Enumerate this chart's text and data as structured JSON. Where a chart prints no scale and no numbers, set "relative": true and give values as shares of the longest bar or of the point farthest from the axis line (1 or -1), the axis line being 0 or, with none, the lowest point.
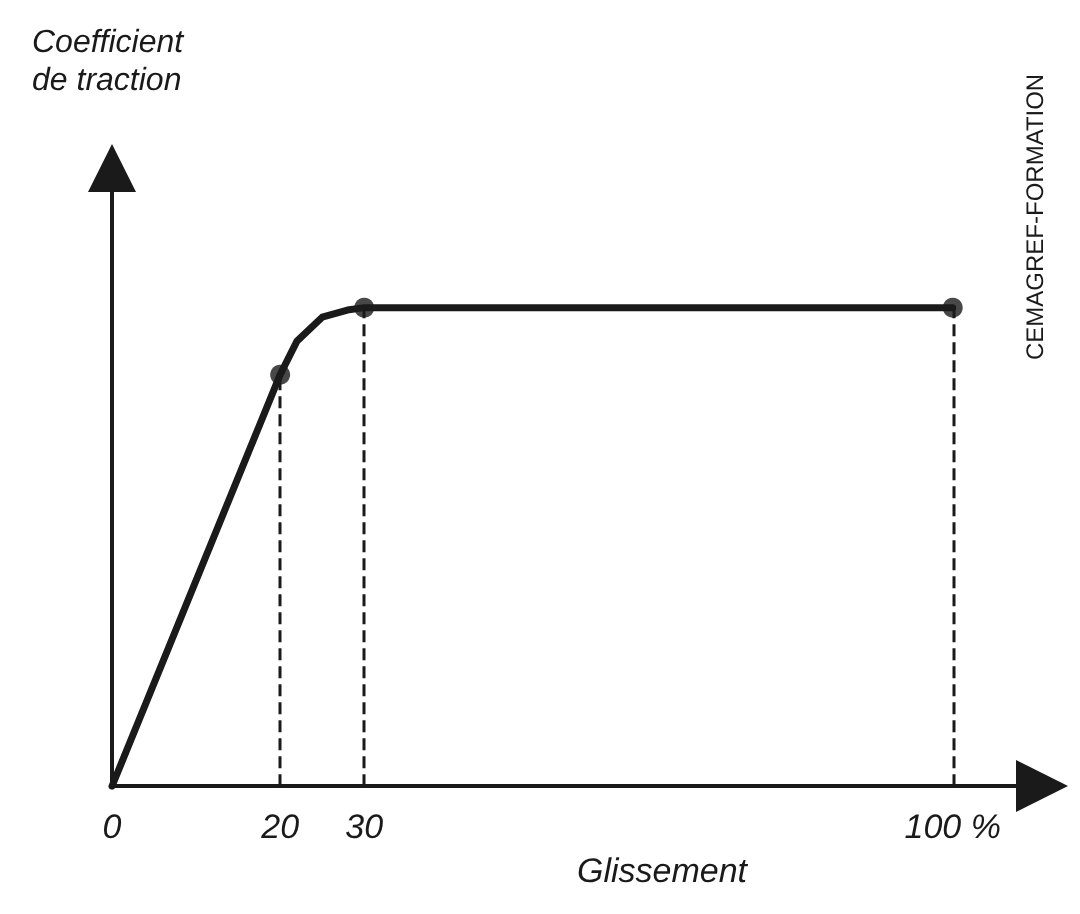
{
  "chart_data": {
    "type": "line",
    "relative": true,
    "xlabel": "Glissement",
    "annotations": [
      "Coefficient\nde traction",
      "CEMAGREF-FORMATION"
    ],
    "xlim": [
      0,
      108
    ],
    "xticks": [
      0,
      20,
      30,
      {
        "value": 100,
        "label": "100 %"
      }
    ],
    "series": [
      {
        "color": "#1a1a1a",
        "marker": "none",
        "x": [
          0,
          20,
          22,
          25,
          28,
          30,
          100
        ],
        "values": [
          0,
          0.86,
          0.93,
          0.98,
          0.995,
          1,
          1
        ]
      },
      {
        "type": "scatter",
        "color": "#1a1a1a",
        "marker": "circle",
        "x": [
          20,
          30,
          100
        ],
        "values": [
          0.86,
          1,
          1
        ]
      }
    ],
    "ref_lines": [
      {
        "axis": "x",
        "value": 20,
        "color": "#1a1a1a",
        "line_style": "dashed"
      },
      {
        "axis": "x",
        "value": 30,
        "color": "#1a1a1a",
        "line_style": "dashed"
      },
      {
        "axis": "x",
        "value": 100,
        "color": "#1a1a1a",
        "line_style": "dashed"
      }
    ],
    "grid": false
  }
}
